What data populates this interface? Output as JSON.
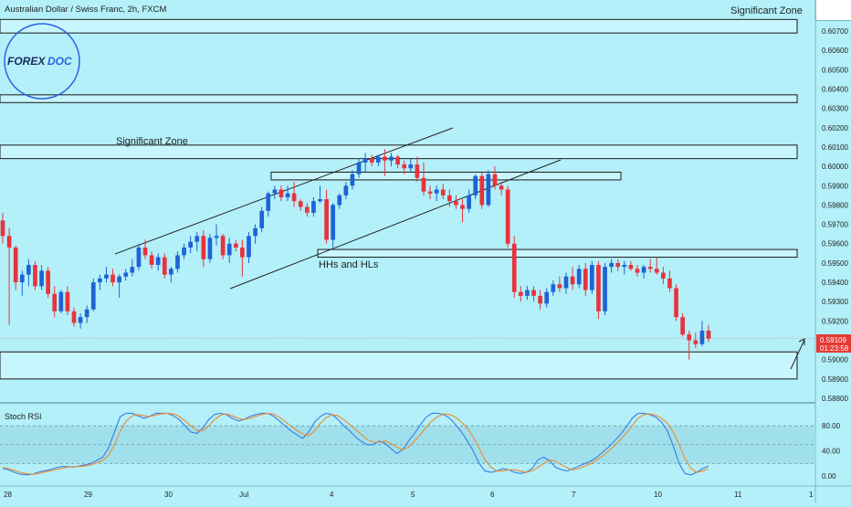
{
  "header": {
    "symbol_title": "Australian Dollar / Swiss Franc, 2h, FXCM"
  },
  "logo": {
    "text_a": "FOREX",
    "text_b": "DOC"
  },
  "annotations": {
    "sig_zone_top": "Significant Zone",
    "sig_zone_mid": "Significant Zone",
    "hhs_hls": "HHs and HLs"
  },
  "price_tag": {
    "price": "0.59109",
    "countdown": "01:23:58"
  },
  "indicator": {
    "name": "Stoch RSI"
  },
  "colors": {
    "background": "#b3f0f9",
    "bull": "#1e63d6",
    "bear": "#e8333d",
    "k_line": "#3d7be0",
    "d_line": "#f08a2b",
    "zone_fill": "#c8f6ff",
    "price_tag": "#e53935"
  },
  "chart_data": [
    {
      "type": "candlestick",
      "title": "Australian Dollar / Swiss Franc, 2h, FXCM",
      "y_axis": {
        "range": [
          0.588,
          0.6079
        ],
        "ticks": [
          0.607,
          0.606,
          0.605,
          0.604,
          0.603,
          0.602,
          0.601,
          0.6,
          0.599,
          0.598,
          0.597,
          0.596,
          0.595,
          0.594,
          0.593,
          0.592,
          0.59,
          0.589,
          0.588
        ],
        "tick_labels": [
          "0.60700",
          "0.60600",
          "0.60500",
          "0.60400",
          "0.60300",
          "0.60200",
          "0.60100",
          "0.60000",
          "0.59900",
          "0.59800",
          "0.59700",
          "0.59600",
          "0.59500",
          "0.59400",
          "0.59300",
          "0.59200",
          "0.59000",
          "0.58900",
          "0.58800"
        ]
      },
      "x_axis": {
        "tick_labels": [
          "28",
          "29",
          "30",
          "Jul",
          "4",
          "5",
          "6",
          "7",
          "10",
          "11",
          "1"
        ]
      },
      "last_price": 0.59109,
      "zones": [
        {
          "label": "Significant Zone",
          "low": 0.6069,
          "high": 0.6076
        },
        {
          "label": "",
          "low": 0.6033,
          "high": 0.6037
        },
        {
          "label": "Significant Zone",
          "low": 0.6004,
          "high": 0.6011
        },
        {
          "label": "",
          "low": 0.5993,
          "high": 0.5997
        },
        {
          "label": "HHs and HLs",
          "low": 0.5953,
          "high": 0.5957
        },
        {
          "label": "",
          "low": 0.589,
          "high": 0.5904
        }
      ],
      "candles": [
        {
          "o": 0.5972,
          "h": 0.5976,
          "l": 0.596,
          "c": 0.5964
        },
        {
          "o": 0.5964,
          "h": 0.5968,
          "l": 0.5918,
          "c": 0.5958
        },
        {
          "o": 0.5958,
          "h": 0.5959,
          "l": 0.5936,
          "c": 0.594
        },
        {
          "o": 0.594,
          "h": 0.5946,
          "l": 0.5933,
          "c": 0.5944
        },
        {
          "o": 0.5944,
          "h": 0.5952,
          "l": 0.5938,
          "c": 0.5949
        },
        {
          "o": 0.5949,
          "h": 0.5951,
          "l": 0.5936,
          "c": 0.5938
        },
        {
          "o": 0.5938,
          "h": 0.5949,
          "l": 0.5936,
          "c": 0.5946
        },
        {
          "o": 0.5946,
          "h": 0.5948,
          "l": 0.5932,
          "c": 0.5934
        },
        {
          "o": 0.5934,
          "h": 0.5938,
          "l": 0.5922,
          "c": 0.5925
        },
        {
          "o": 0.5925,
          "h": 0.5936,
          "l": 0.5924,
          "c": 0.5935
        },
        {
          "o": 0.5935,
          "h": 0.5938,
          "l": 0.5923,
          "c": 0.5925
        },
        {
          "o": 0.5925,
          "h": 0.5927,
          "l": 0.5917,
          "c": 0.5919
        },
        {
          "o": 0.5919,
          "h": 0.5924,
          "l": 0.5916,
          "c": 0.5922
        },
        {
          "o": 0.5922,
          "h": 0.5928,
          "l": 0.5919,
          "c": 0.5926
        },
        {
          "o": 0.5926,
          "h": 0.5942,
          "l": 0.5925,
          "c": 0.594
        },
        {
          "o": 0.594,
          "h": 0.5944,
          "l": 0.5936,
          "c": 0.5942
        },
        {
          "o": 0.5942,
          "h": 0.5948,
          "l": 0.594,
          "c": 0.5944
        },
        {
          "o": 0.5944,
          "h": 0.5947,
          "l": 0.5938,
          "c": 0.594
        },
        {
          "o": 0.594,
          "h": 0.5944,
          "l": 0.5932,
          "c": 0.5943
        },
        {
          "o": 0.5943,
          "h": 0.5947,
          "l": 0.5941,
          "c": 0.5945
        },
        {
          "o": 0.5945,
          "h": 0.5952,
          "l": 0.5943,
          "c": 0.5948
        },
        {
          "o": 0.5948,
          "h": 0.596,
          "l": 0.5946,
          "c": 0.5958
        },
        {
          "o": 0.5958,
          "h": 0.5962,
          "l": 0.5952,
          "c": 0.5954
        },
        {
          "o": 0.5954,
          "h": 0.5956,
          "l": 0.5947,
          "c": 0.5949
        },
        {
          "o": 0.5949,
          "h": 0.5955,
          "l": 0.5946,
          "c": 0.5953
        },
        {
          "o": 0.5953,
          "h": 0.5955,
          "l": 0.5942,
          "c": 0.5944
        },
        {
          "o": 0.5944,
          "h": 0.5948,
          "l": 0.594,
          "c": 0.5947
        },
        {
          "o": 0.5947,
          "h": 0.5956,
          "l": 0.5945,
          "c": 0.5954
        },
        {
          "o": 0.5954,
          "h": 0.596,
          "l": 0.5952,
          "c": 0.5958
        },
        {
          "o": 0.5958,
          "h": 0.5964,
          "l": 0.5955,
          "c": 0.5961
        },
        {
          "o": 0.5961,
          "h": 0.5966,
          "l": 0.5956,
          "c": 0.5964
        },
        {
          "o": 0.5964,
          "h": 0.5967,
          "l": 0.5948,
          "c": 0.5952
        },
        {
          "o": 0.5952,
          "h": 0.5965,
          "l": 0.595,
          "c": 0.5963
        },
        {
          "o": 0.5963,
          "h": 0.597,
          "l": 0.5959,
          "c": 0.5964
        },
        {
          "o": 0.5964,
          "h": 0.5965,
          "l": 0.5952,
          "c": 0.5954
        },
        {
          "o": 0.5954,
          "h": 0.5963,
          "l": 0.595,
          "c": 0.596
        },
        {
          "o": 0.596,
          "h": 0.5962,
          "l": 0.5956,
          "c": 0.5958
        },
        {
          "o": 0.5958,
          "h": 0.5962,
          "l": 0.5943,
          "c": 0.5953
        },
        {
          "o": 0.5953,
          "h": 0.5966,
          "l": 0.595,
          "c": 0.5964
        },
        {
          "o": 0.5964,
          "h": 0.597,
          "l": 0.596,
          "c": 0.5968
        },
        {
          "o": 0.5968,
          "h": 0.5979,
          "l": 0.5966,
          "c": 0.5977
        },
        {
          "o": 0.5977,
          "h": 0.5987,
          "l": 0.5974,
          "c": 0.5986
        },
        {
          "o": 0.5986,
          "h": 0.599,
          "l": 0.5983,
          "c": 0.5988
        },
        {
          "o": 0.5988,
          "h": 0.599,
          "l": 0.5982,
          "c": 0.5984
        },
        {
          "o": 0.5984,
          "h": 0.599,
          "l": 0.5982,
          "c": 0.5986
        },
        {
          "o": 0.5986,
          "h": 0.5992,
          "l": 0.5979,
          "c": 0.5982
        },
        {
          "o": 0.5982,
          "h": 0.5983,
          "l": 0.5977,
          "c": 0.5979
        },
        {
          "o": 0.5979,
          "h": 0.5981,
          "l": 0.5974,
          "c": 0.5976
        },
        {
          "o": 0.5976,
          "h": 0.5984,
          "l": 0.5974,
          "c": 0.5982
        },
        {
          "o": 0.5982,
          "h": 0.599,
          "l": 0.5981,
          "c": 0.5983
        },
        {
          "o": 0.5983,
          "h": 0.5988,
          "l": 0.596,
          "c": 0.5962
        },
        {
          "o": 0.5962,
          "h": 0.5981,
          "l": 0.5958,
          "c": 0.598
        },
        {
          "o": 0.598,
          "h": 0.5986,
          "l": 0.5978,
          "c": 0.5985
        },
        {
          "o": 0.5985,
          "h": 0.5992,
          "l": 0.5983,
          "c": 0.599
        },
        {
          "o": 0.599,
          "h": 0.5998,
          "l": 0.5988,
          "c": 0.5996
        },
        {
          "o": 0.5996,
          "h": 0.6004,
          "l": 0.5994,
          "c": 0.6002
        },
        {
          "o": 0.6002,
          "h": 0.6007,
          "l": 0.5997,
          "c": 0.6004
        },
        {
          "o": 0.6004,
          "h": 0.6006,
          "l": 0.6,
          "c": 0.6002
        },
        {
          "o": 0.6002,
          "h": 0.6006,
          "l": 0.6,
          "c": 0.6005
        },
        {
          "o": 0.6005,
          "h": 0.6009,
          "l": 0.5995,
          "c": 0.6003
        },
        {
          "o": 0.6003,
          "h": 0.6007,
          "l": 0.6,
          "c": 0.6005
        },
        {
          "o": 0.6005,
          "h": 0.6006,
          "l": 0.5999,
          "c": 0.6001
        },
        {
          "o": 0.6001,
          "h": 0.6003,
          "l": 0.5996,
          "c": 0.5999
        },
        {
          "o": 0.5999,
          "h": 0.6004,
          "l": 0.5997,
          "c": 0.6001
        },
        {
          "o": 0.6001,
          "h": 0.6005,
          "l": 0.5992,
          "c": 0.5994
        },
        {
          "o": 0.5994,
          "h": 0.6002,
          "l": 0.5985,
          "c": 0.5987
        },
        {
          "o": 0.5987,
          "h": 0.599,
          "l": 0.5983,
          "c": 0.5986
        },
        {
          "o": 0.5986,
          "h": 0.599,
          "l": 0.5982,
          "c": 0.5988
        },
        {
          "o": 0.5988,
          "h": 0.5991,
          "l": 0.5983,
          "c": 0.5985
        },
        {
          "o": 0.5985,
          "h": 0.5988,
          "l": 0.5979,
          "c": 0.5982
        },
        {
          "o": 0.5982,
          "h": 0.5985,
          "l": 0.5978,
          "c": 0.598
        },
        {
          "o": 0.598,
          "h": 0.5983,
          "l": 0.5971,
          "c": 0.5978
        },
        {
          "o": 0.5978,
          "h": 0.5988,
          "l": 0.5976,
          "c": 0.5985
        },
        {
          "o": 0.5985,
          "h": 0.5996,
          "l": 0.5983,
          "c": 0.5995
        },
        {
          "o": 0.5995,
          "h": 0.5997,
          "l": 0.5978,
          "c": 0.598
        },
        {
          "o": 0.598,
          "h": 0.5998,
          "l": 0.5979,
          "c": 0.5996
        },
        {
          "o": 0.5996,
          "h": 0.6,
          "l": 0.5988,
          "c": 0.599
        },
        {
          "o": 0.599,
          "h": 0.5992,
          "l": 0.5985,
          "c": 0.5988
        },
        {
          "o": 0.5988,
          "h": 0.599,
          "l": 0.5958,
          "c": 0.596
        },
        {
          "o": 0.596,
          "h": 0.5964,
          "l": 0.5932,
          "c": 0.5935
        },
        {
          "o": 0.5935,
          "h": 0.5938,
          "l": 0.593,
          "c": 0.5933
        },
        {
          "o": 0.5933,
          "h": 0.5938,
          "l": 0.5931,
          "c": 0.5936
        },
        {
          "o": 0.5936,
          "h": 0.5938,
          "l": 0.593,
          "c": 0.5933
        },
        {
          "o": 0.5933,
          "h": 0.5936,
          "l": 0.5926,
          "c": 0.5929
        },
        {
          "o": 0.5929,
          "h": 0.5937,
          "l": 0.5927,
          "c": 0.5935
        },
        {
          "o": 0.5935,
          "h": 0.5941,
          "l": 0.5933,
          "c": 0.5939
        },
        {
          "o": 0.5939,
          "h": 0.5943,
          "l": 0.5935,
          "c": 0.5937
        },
        {
          "o": 0.5937,
          "h": 0.5945,
          "l": 0.5934,
          "c": 0.5943
        },
        {
          "o": 0.5943,
          "h": 0.5948,
          "l": 0.5936,
          "c": 0.5939
        },
        {
          "o": 0.5939,
          "h": 0.5949,
          "l": 0.5937,
          "c": 0.5947
        },
        {
          "o": 0.5947,
          "h": 0.595,
          "l": 0.5933,
          "c": 0.5936
        },
        {
          "o": 0.5936,
          "h": 0.5951,
          "l": 0.5934,
          "c": 0.5949
        },
        {
          "o": 0.5949,
          "h": 0.5951,
          "l": 0.5921,
          "c": 0.5925
        },
        {
          "o": 0.5925,
          "h": 0.595,
          "l": 0.5923,
          "c": 0.5948
        },
        {
          "o": 0.5948,
          "h": 0.5952,
          "l": 0.5945,
          "c": 0.595
        },
        {
          "o": 0.595,
          "h": 0.5952,
          "l": 0.5946,
          "c": 0.5948
        },
        {
          "o": 0.5948,
          "h": 0.5951,
          "l": 0.5944,
          "c": 0.5949
        },
        {
          "o": 0.5949,
          "h": 0.5951,
          "l": 0.5946,
          "c": 0.5947
        },
        {
          "o": 0.5947,
          "h": 0.5949,
          "l": 0.5943,
          "c": 0.5945
        },
        {
          "o": 0.5945,
          "h": 0.5949,
          "l": 0.5942,
          "c": 0.5948
        },
        {
          "o": 0.5948,
          "h": 0.5952,
          "l": 0.5945,
          "c": 0.5947
        },
        {
          "o": 0.5947,
          "h": 0.5953,
          "l": 0.5944,
          "c": 0.5945
        },
        {
          "o": 0.5945,
          "h": 0.5948,
          "l": 0.5939,
          "c": 0.5942
        },
        {
          "o": 0.5942,
          "h": 0.5946,
          "l": 0.5935,
          "c": 0.5937
        },
        {
          "o": 0.5937,
          "h": 0.5939,
          "l": 0.592,
          "c": 0.5922
        },
        {
          "o": 0.5922,
          "h": 0.5924,
          "l": 0.5912,
          "c": 0.5913
        },
        {
          "o": 0.5913,
          "h": 0.5915,
          "l": 0.59,
          "c": 0.591
        },
        {
          "o": 0.591,
          "h": 0.5914,
          "l": 0.5906,
          "c": 0.5908
        },
        {
          "o": 0.5908,
          "h": 0.592,
          "l": 0.5907,
          "c": 0.5915
        },
        {
          "o": 0.5915,
          "h": 0.5918,
          "l": 0.5909,
          "c": 0.59109
        }
      ]
    },
    {
      "type": "line",
      "title": "Stoch RSI",
      "y_axis": {
        "range": [
          -10,
          105
        ],
        "ticks": [
          80,
          40,
          0
        ],
        "tick_labels": [
          "80.00",
          "40.00",
          "0.00"
        ]
      },
      "bands": [
        80,
        50,
        20
      ],
      "series": [
        {
          "values": [
            12,
            10,
            6,
            3,
            2,
            3,
            6,
            8,
            10,
            13,
            15,
            15,
            14,
            16,
            18,
            20,
            25,
            30,
            45,
            70,
            95,
            100,
            100,
            96,
            92,
            95,
            100,
            100,
            100,
            96,
            90,
            80,
            70,
            68,
            76,
            90,
            98,
            100,
            98,
            92,
            88,
            90,
            95,
            98,
            100,
            100,
            96,
            88,
            80,
            72,
            66,
            60,
            70,
            86,
            95,
            100,
            98,
            90,
            80,
            72,
            62,
            55,
            50,
            50,
            56,
            52,
            44,
            36,
            42,
            56,
            68,
            82,
            94,
            100,
            100,
            98,
            92,
            82,
            70,
            56,
            40,
            20,
            8,
            6,
            8,
            12,
            10,
            6,
            4,
            6,
            12,
            26,
            30,
            24,
            14,
            10,
            8,
            12,
            16,
            20,
            24,
            30,
            38,
            46,
            56,
            66,
            78,
            92,
            100,
            100,
            98,
            94,
            86,
            72,
            48,
            20,
            4,
            2,
            6,
            12,
            16
          ]
        },
        {
          "values": [
            14,
            12,
            9,
            6,
            4,
            3,
            4,
            6,
            8,
            10,
            12,
            14,
            15,
            15,
            16,
            18,
            21,
            25,
            33,
            50,
            72,
            88,
            96,
            98,
            96,
            95,
            97,
            99,
            100,
            99,
            95,
            88,
            80,
            73,
            72,
            80,
            90,
            97,
            99,
            96,
            92,
            90,
            92,
            95,
            98,
            100,
            99,
            94,
            87,
            80,
            73,
            67,
            64,
            72,
            84,
            93,
            98,
            96,
            90,
            82,
            74,
            66,
            58,
            54,
            54,
            56,
            52,
            46,
            42,
            46,
            56,
            66,
            78,
            88,
            95,
            99,
            98,
            94,
            86,
            76,
            62,
            44,
            26,
            14,
            8,
            8,
            10,
            10,
            8,
            6,
            8,
            14,
            20,
            26,
            24,
            18,
            13,
            10,
            12,
            16,
            20,
            26,
            32,
            40,
            48,
            58,
            68,
            80,
            92,
            98,
            99,
            97,
            92,
            84,
            70,
            50,
            28,
            12,
            6,
            8,
            12
          ]
        }
      ]
    }
  ]
}
